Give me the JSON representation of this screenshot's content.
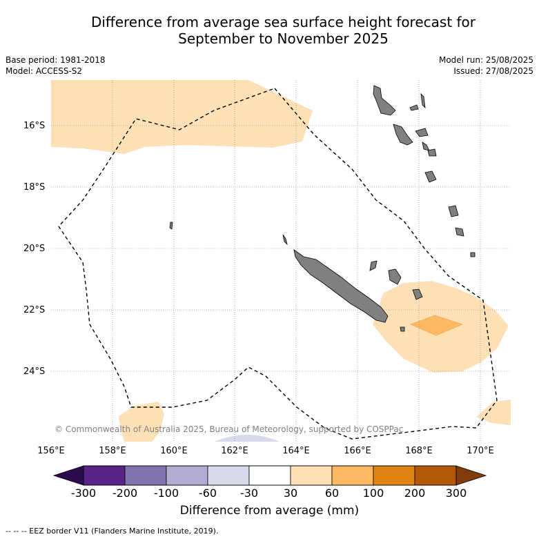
{
  "title_line1": "Difference from average sea surface height forecast for",
  "title_line2": "September to November 2025",
  "meta": {
    "base_period": "Base period: 1981-2018",
    "model": "Model: ACCESS-S2",
    "model_run": "Model run: 25/08/2025",
    "issued": "Issued: 27/08/2025"
  },
  "axes": {
    "lat_labels": [
      "16°S",
      "18°S",
      "20°S",
      "22°S",
      "24°S"
    ],
    "lon_labels": [
      "156°E",
      "158°E",
      "160°E",
      "162°E",
      "164°E",
      "166°E",
      "168°E",
      "170°E"
    ]
  },
  "copyright": "© Commonwealth of Australia 2025, Bureau of Meteorology, supported by COSPPac",
  "colorbar": {
    "ticks": [
      "-300",
      "-200",
      "-100",
      "-60",
      "-30",
      "30",
      "60",
      "100",
      "200",
      "300"
    ],
    "colors": [
      "#2d0a4e",
      "#5a2388",
      "#8173ad",
      "#b2abd2",
      "#d8daeb",
      "#ffffff",
      "#fee0b6",
      "#fdb863",
      "#e08214",
      "#b35806",
      "#7f3b08"
    ],
    "label": "Difference from average (mm)"
  },
  "footnote": "--  --  -- EEZ border V11 (Flanders Marine Institute, 2019).",
  "map_colors": {
    "band_30_60": "#fee0b6",
    "band_60_100": "#fdb863",
    "band_neg30_neg60": "#d8daeb",
    "land": "#808080"
  }
}
